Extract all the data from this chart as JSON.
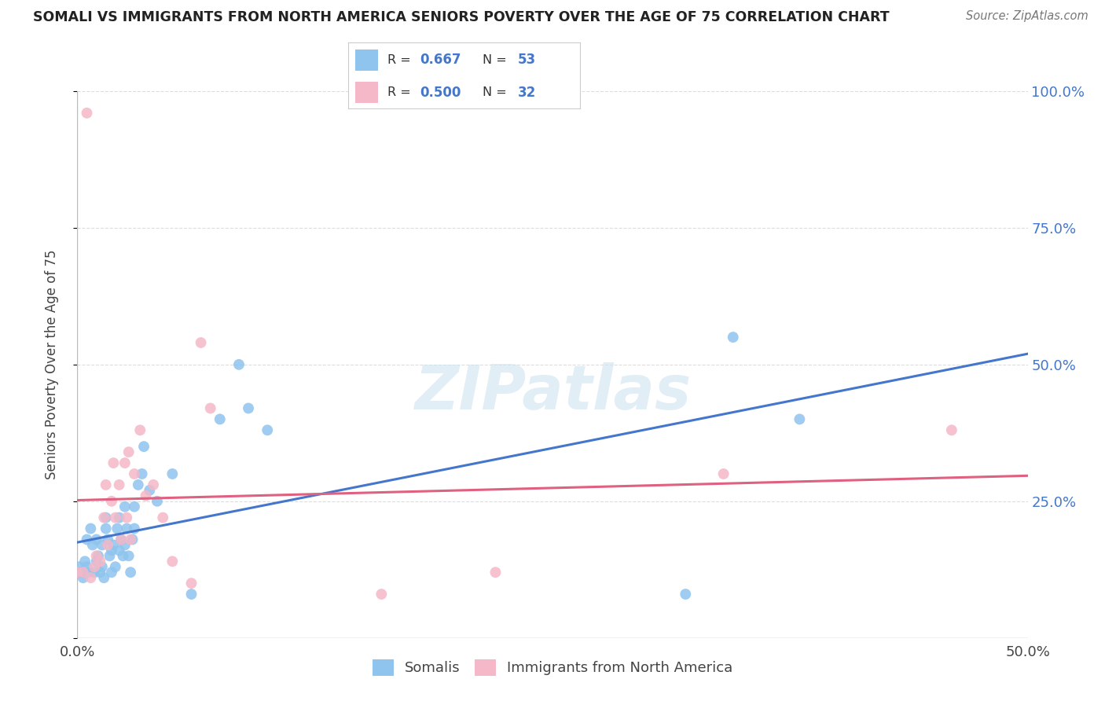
{
  "title": "SOMALI VS IMMIGRANTS FROM NORTH AMERICA SENIORS POVERTY OVER THE AGE OF 75 CORRELATION CHART",
  "source": "Source: ZipAtlas.com",
  "ylabel": "Seniors Poverty Over the Age of 75",
  "xlim": [
    0.0,
    0.5
  ],
  "ylim": [
    0.0,
    1.0
  ],
  "xticks": [
    0.0,
    0.1,
    0.2,
    0.3,
    0.4,
    0.5
  ],
  "xticklabels": [
    "0.0%",
    "",
    "",
    "",
    "",
    "50.0%"
  ],
  "yticks": [
    0.0,
    0.25,
    0.5,
    0.75,
    1.0
  ],
  "yticklabels": [
    "",
    "25.0%",
    "50.0%",
    "75.0%",
    "100.0%"
  ],
  "R_blue": "0.667",
  "N_blue": "53",
  "R_pink": "0.500",
  "N_pink": "32",
  "blue_color": "#8ec4ee",
  "pink_color": "#f5b8c8",
  "blue_line_color": "#4477cc",
  "pink_line_color": "#e06080",
  "watermark": "ZIPatlas",
  "legend_label_blue": "Somalis",
  "legend_label_pink": "Immigrants from North America",
  "somali_x": [
    0.0,
    0.001,
    0.002,
    0.003,
    0.004,
    0.005,
    0.005,
    0.006,
    0.007,
    0.008,
    0.009,
    0.01,
    0.01,
    0.011,
    0.012,
    0.013,
    0.013,
    0.014,
    0.015,
    0.015,
    0.016,
    0.017,
    0.018,
    0.018,
    0.019,
    0.02,
    0.021,
    0.022,
    0.022,
    0.023,
    0.024,
    0.025,
    0.025,
    0.026,
    0.027,
    0.028,
    0.029,
    0.03,
    0.03,
    0.032,
    0.034,
    0.035,
    0.038,
    0.042,
    0.05,
    0.06,
    0.075,
    0.085,
    0.09,
    0.1,
    0.32,
    0.345,
    0.38
  ],
  "somali_y": [
    0.12,
    0.13,
    0.12,
    0.11,
    0.14,
    0.13,
    0.18,
    0.12,
    0.2,
    0.17,
    0.12,
    0.14,
    0.18,
    0.15,
    0.12,
    0.13,
    0.17,
    0.11,
    0.2,
    0.22,
    0.18,
    0.15,
    0.12,
    0.16,
    0.17,
    0.13,
    0.2,
    0.16,
    0.22,
    0.18,
    0.15,
    0.17,
    0.24,
    0.2,
    0.15,
    0.12,
    0.18,
    0.2,
    0.24,
    0.28,
    0.3,
    0.35,
    0.27,
    0.25,
    0.3,
    0.08,
    0.4,
    0.5,
    0.42,
    0.38,
    0.08,
    0.55,
    0.4
  ],
  "north_america_x": [
    0.0,
    0.003,
    0.005,
    0.007,
    0.009,
    0.01,
    0.012,
    0.014,
    0.015,
    0.016,
    0.018,
    0.019,
    0.02,
    0.022,
    0.023,
    0.025,
    0.026,
    0.027,
    0.028,
    0.03,
    0.033,
    0.036,
    0.04,
    0.045,
    0.05,
    0.06,
    0.065,
    0.07,
    0.16,
    0.22,
    0.34,
    0.46
  ],
  "north_america_y": [
    0.12,
    0.12,
    0.96,
    0.11,
    0.13,
    0.15,
    0.14,
    0.22,
    0.28,
    0.17,
    0.25,
    0.32,
    0.22,
    0.28,
    0.18,
    0.32,
    0.22,
    0.34,
    0.18,
    0.3,
    0.38,
    0.26,
    0.28,
    0.22,
    0.14,
    0.1,
    0.54,
    0.42,
    0.08,
    0.12,
    0.3,
    0.38
  ]
}
